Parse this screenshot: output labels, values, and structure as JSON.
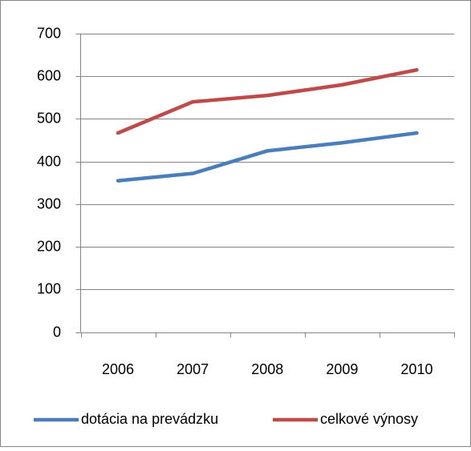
{
  "chart_data": {
    "type": "line",
    "categories": [
      "2006",
      "2007",
      "2008",
      "2009",
      "2010"
    ],
    "series": [
      {
        "name": "dotácia na prevádzku",
        "color": "#4a7ebb",
        "values": [
          355,
          372,
          425,
          444,
          467
        ]
      },
      {
        "name": "celkové výnosy",
        "color": "#be4b48",
        "values": [
          467,
          540,
          555,
          580,
          615
        ]
      }
    ],
    "ylim": [
      0,
      700
    ],
    "yticks": [
      0,
      100,
      200,
      300,
      400,
      500,
      600,
      700
    ],
    "grid": true,
    "legend": "bottom"
  }
}
